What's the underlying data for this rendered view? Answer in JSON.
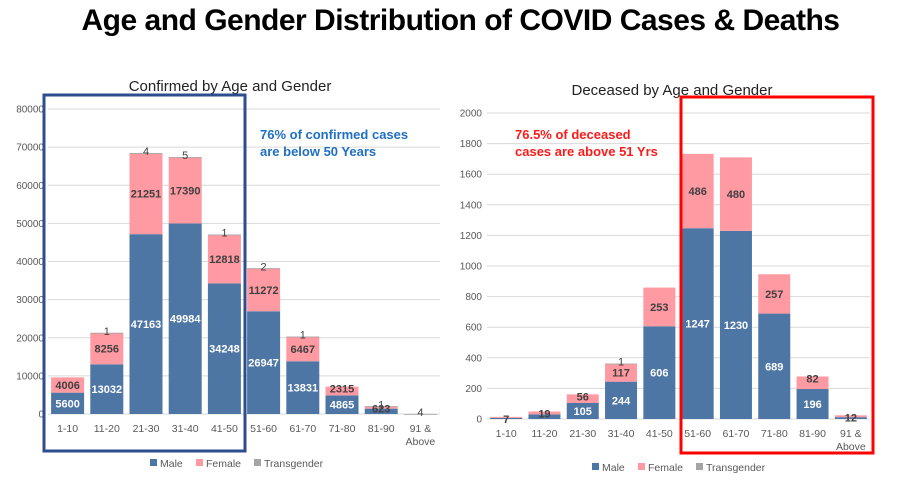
{
  "page": {
    "title": "Age and Gender Distribution of COVID Cases & Deaths"
  },
  "colors": {
    "male": "#4e76a5",
    "female": "#ff9aa2",
    "transgender": "#a5a5a5",
    "left_box": "#2e4d8f",
    "right_box": "#ff0000",
    "left_note": "#1f6fc2",
    "right_note": "#ff1a1a",
    "grid": "#d9d9d9"
  },
  "chart_data": [
    {
      "type": "bar",
      "stacked": true,
      "title": "Confirmed by Age and Gender",
      "xlabel": "",
      "ylabel": "",
      "ylim": [
        0,
        80000
      ],
      "yticks": [
        0,
        10000,
        20000,
        30000,
        40000,
        50000,
        60000,
        70000,
        80000
      ],
      "grid": true,
      "legend_position": "bottom",
      "categories": [
        "1-10",
        "11-20",
        "21-30",
        "31-40",
        "41-50",
        "51-60",
        "61-70",
        "71-80",
        "81-90",
        "91 & Above"
      ],
      "series": [
        {
          "name": "Male",
          "values": [
            5600,
            13032,
            47163,
            49984,
            34248,
            26947,
            13831,
            4865,
            1400,
            0
          ],
          "labels": [
            "5600",
            "13032",
            "47163",
            "49984",
            "34248",
            "26947",
            "13831",
            "4865",
            "",
            ""
          ]
        },
        {
          "name": "Female",
          "values": [
            4006,
            8256,
            21251,
            17390,
            12818,
            11272,
            6467,
            2315,
            623,
            0
          ],
          "labels": [
            "4006",
            "8256",
            "21251",
            "17390",
            "12818",
            "11272",
            "6467",
            "2315",
            "623",
            ""
          ]
        },
        {
          "name": "Transgender",
          "values": [
            0,
            1,
            4,
            5,
            1,
            2,
            1,
            0,
            1,
            4
          ],
          "labels": [
            "",
            "1",
            "4",
            "5",
            "1",
            "2",
            "1",
            "",
            "1",
            "4"
          ]
        }
      ],
      "annotation": {
        "lines": [
          "76% of confirmed cases",
          "are below 50 Years"
        ],
        "highlight_range": [
          "1-10",
          "41-50"
        ]
      }
    },
    {
      "type": "bar",
      "stacked": true,
      "title": "Deceased by Age and Gender",
      "xlabel": "",
      "ylabel": "",
      "ylim": [
        0,
        2000
      ],
      "yticks": [
        0,
        200,
        400,
        600,
        800,
        1000,
        1200,
        1400,
        1600,
        1800,
        2000
      ],
      "grid": true,
      "legend_position": "bottom",
      "categories": [
        "1-10",
        "11-20",
        "21-30",
        "31-40",
        "41-50",
        "51-60",
        "61-70",
        "71-80",
        "81-90",
        "91 & Above"
      ],
      "series": [
        {
          "name": "Male",
          "values": [
            7,
            30,
            105,
            244,
            606,
            1247,
            1230,
            689,
            196,
            12
          ],
          "labels": [
            "",
            "",
            "105",
            "244",
            "606",
            "1247",
            "1230",
            "689",
            "196",
            ""
          ]
        },
        {
          "name": "Female",
          "values": [
            7,
            19,
            56,
            117,
            253,
            486,
            480,
            257,
            82,
            12
          ],
          "labels": [
            "7",
            "19",
            "56",
            "117",
            "253",
            "486",
            "480",
            "257",
            "82",
            "12"
          ]
        },
        {
          "name": "Transgender",
          "values": [
            0,
            0,
            0,
            1,
            0,
            0,
            0,
            0,
            0,
            0
          ],
          "labels": [
            "",
            "",
            "",
            "1",
            "",
            "",
            "",
            "",
            "",
            ""
          ]
        }
      ],
      "annotation": {
        "lines": [
          "76.5% of deceased",
          "cases are above  51 Yrs"
        ],
        "highlight_range": [
          "51-60",
          "91 & Above"
        ]
      }
    }
  ]
}
